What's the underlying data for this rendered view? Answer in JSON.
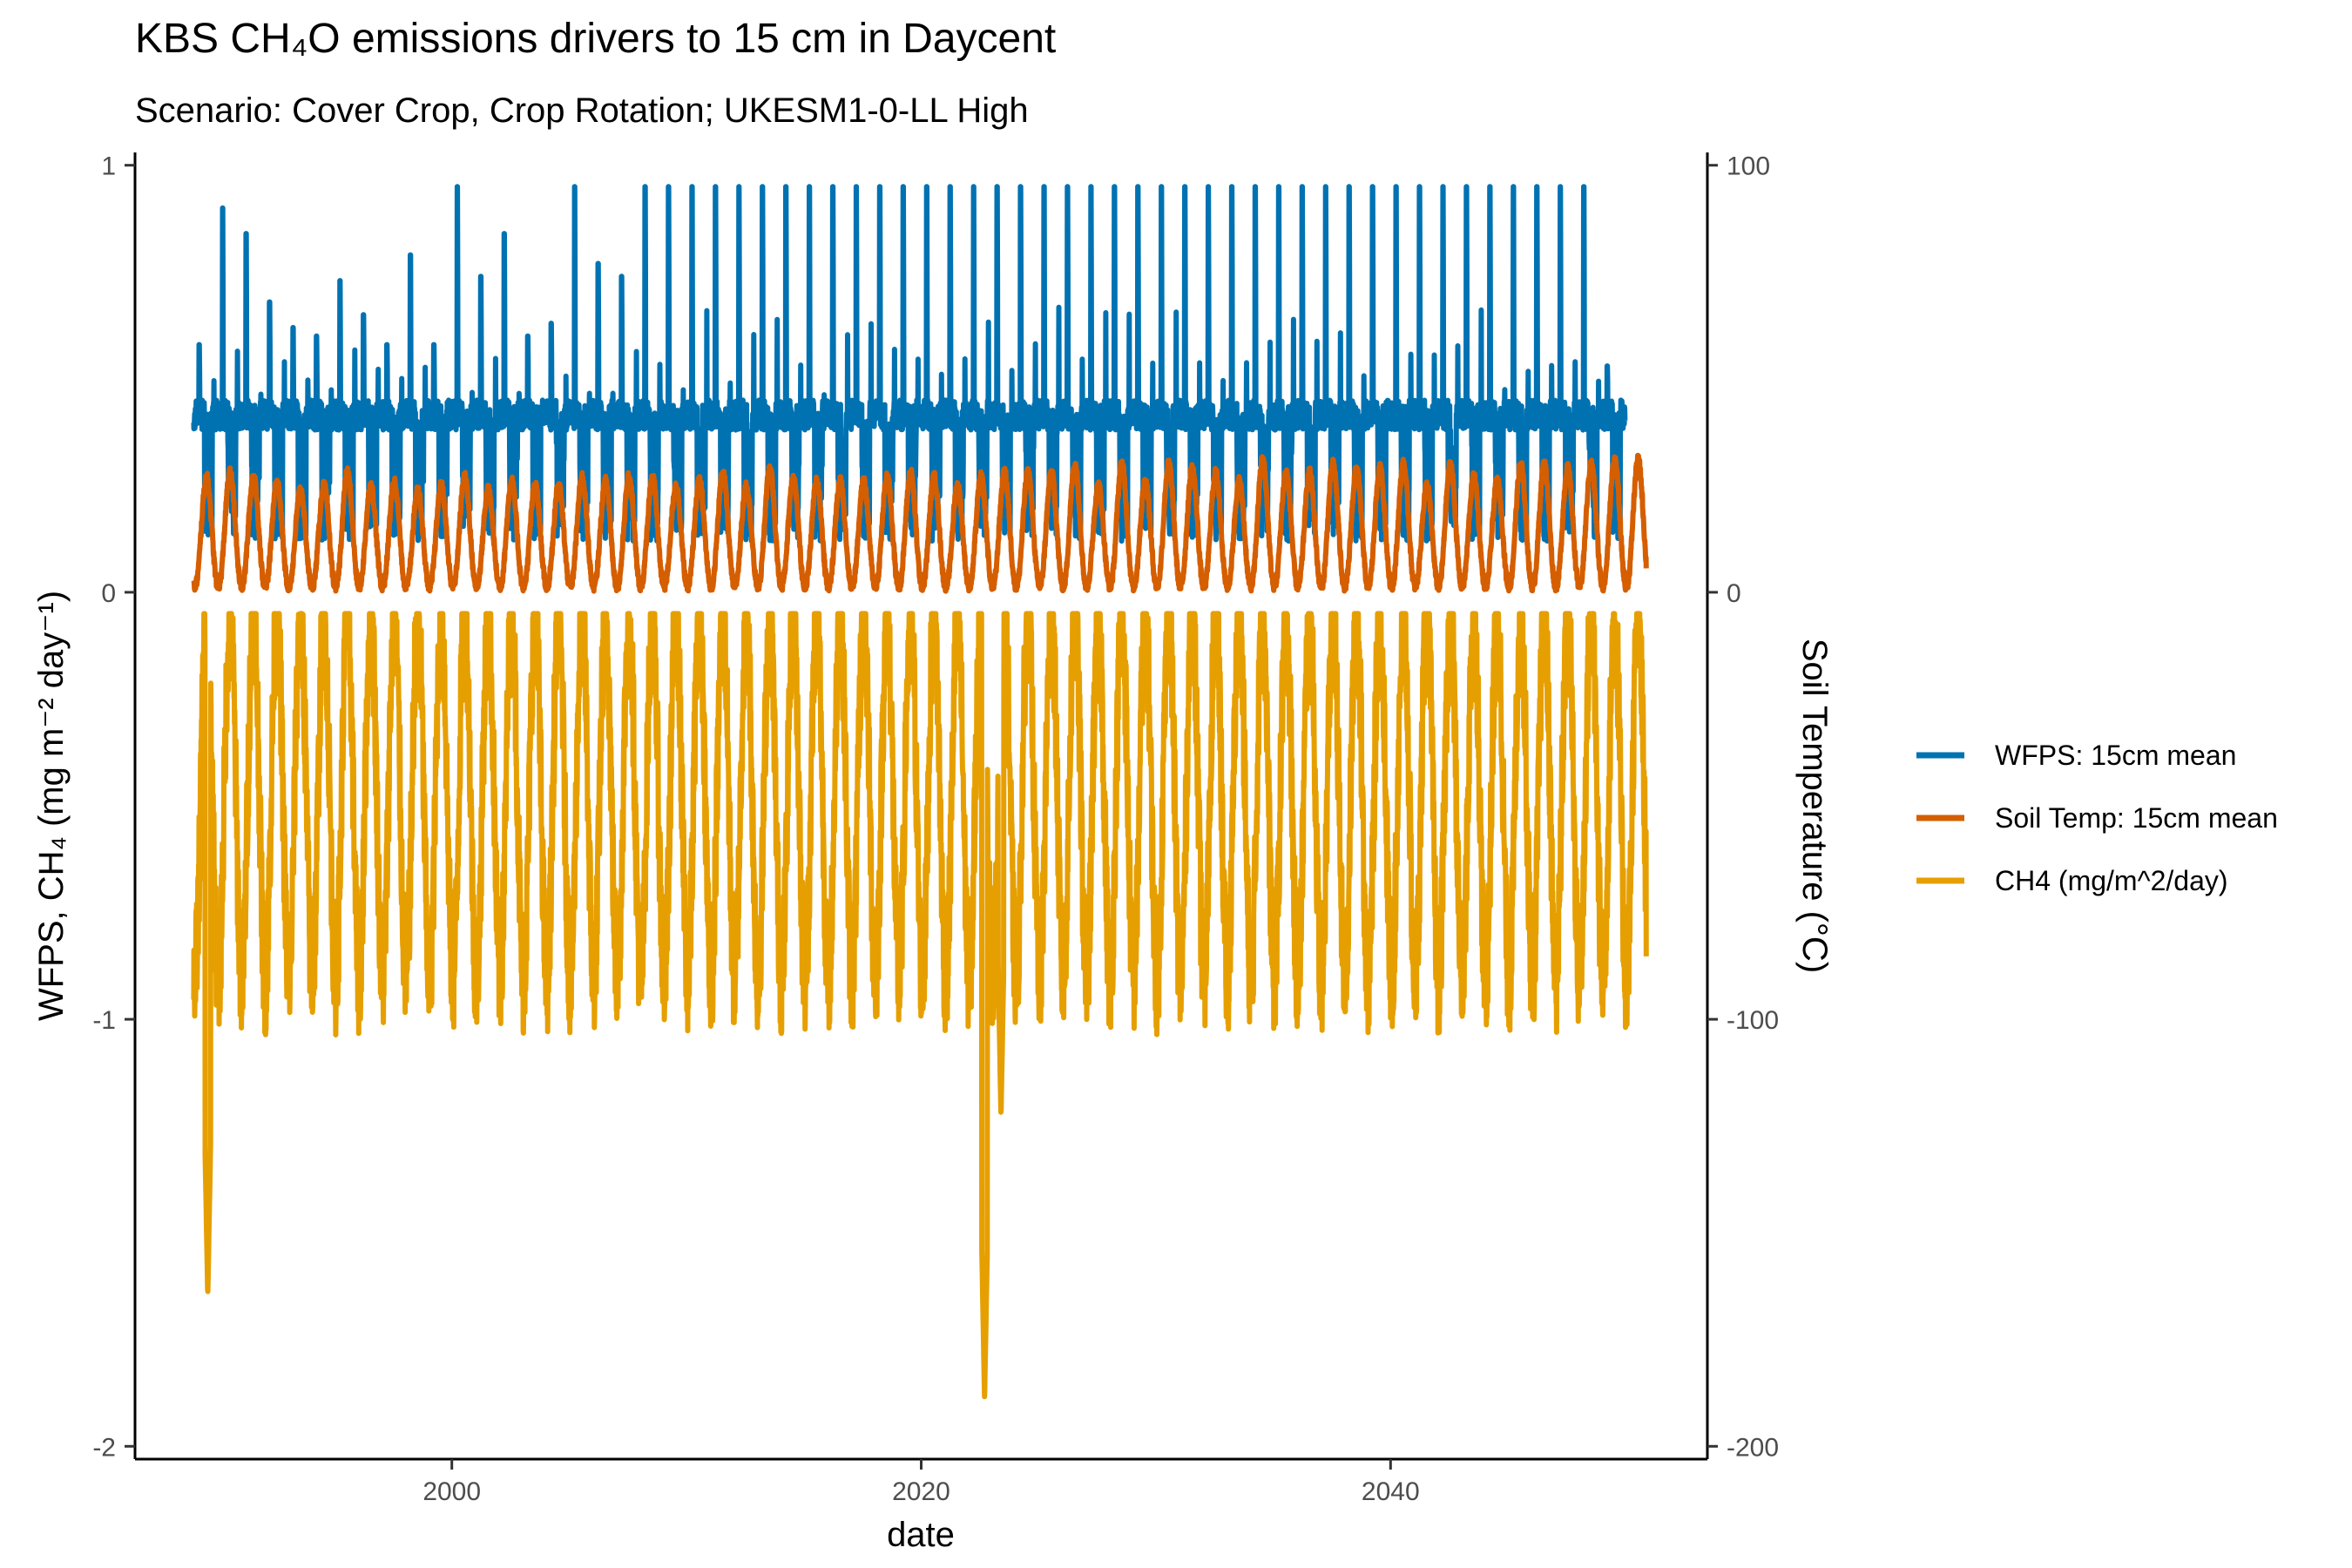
{
  "chart_data": {
    "type": "line",
    "title": "KBS CH₄O emissions drivers to 15 cm in Daycent",
    "subtitle": "Scenario: Cover Crop, Crop Rotation; UKESM1-0-LL High",
    "xlabel": "date",
    "ylabel": "WFPS, CH₄  (mg m⁻² day⁻¹)",
    "y2label": "Soil Temperature (°C)",
    "xlim": [
      1986.5,
      2053.5
    ],
    "ylim": [
      -2.03,
      1.03
    ],
    "y2lim": [
      -203,
      103
    ],
    "x_ticks": [
      2000,
      2020,
      2040
    ],
    "x_tick_labels": [
      "2000",
      "2020",
      "2040"
    ],
    "y_ticks": [
      -2,
      -1,
      0,
      1
    ],
    "y_tick_labels": [
      "-2",
      "-1",
      "0",
      "1"
    ],
    "y2_ticks": [
      -200,
      -100,
      0,
      100
    ],
    "y2_tick_labels": [
      "-200",
      "-100",
      "0",
      "100"
    ],
    "x_start": 1989,
    "x_end": 2050.9,
    "legend_position": "right",
    "grid": false,
    "series": [
      {
        "name": "WFPS: 15cm mean",
        "color": "#0072B2",
        "axis": "left",
        "x_end": 2050,
        "base_low": 0.12,
        "base_high": 0.44,
        "annual_peaks": [
          0.58,
          0.9,
          0.84,
          0.68,
          0.62,
          0.6,
          0.73,
          0.65,
          0.58,
          0.79,
          0.58,
          0.95,
          0.74,
          0.84,
          0.6,
          0.63,
          0.95,
          0.77,
          0.74,
          0.95,
          0.95,
          0.95,
          0.95,
          0.95,
          0.95,
          0.95,
          0.95,
          0.95,
          0.95,
          0.95,
          0.95,
          0.95,
          0.95,
          0.95,
          0.95,
          0.95,
          0.95,
          0.95,
          0.95,
          0.95,
          0.95,
          0.95,
          0.95,
          0.95,
          0.95,
          0.95,
          0.95,
          0.95,
          0.95,
          0.95,
          0.95,
          0.95,
          0.95,
          0.95,
          0.95,
          0.95,
          0.95,
          0.95,
          0.95,
          0.95,
          0.53
        ]
      },
      {
        "name": "Soil Temp: 15cm mean",
        "color": "#D55E00",
        "axis": "right",
        "winter_min": 1.5,
        "summer_max": 28,
        "annual_max": [
          27,
          28,
          27,
          26,
          24,
          25,
          28,
          25,
          26,
          24,
          25,
          27,
          24,
          26,
          25,
          25,
          27,
          26,
          27,
          27,
          25,
          26,
          28,
          25,
          29,
          27,
          26,
          26,
          26,
          27,
          28,
          27,
          25,
          27,
          28,
          28,
          28,
          30,
          25,
          30,
          26,
          30,
          29,
          28,
          26,
          31,
          28,
          28,
          30,
          29,
          29,
          30,
          25,
          30,
          27,
          26,
          30,
          30,
          29,
          30,
          31,
          31
        ]
      },
      {
        "name": "CH4 (mg/m^2/day)",
        "color": "#E69F00",
        "axis": "left",
        "summer_max": -0.05,
        "winter_min": -0.9,
        "dips": [
          {
            "x": 1989.6,
            "y": -1.65
          },
          {
            "x": 2022.7,
            "y": -1.89
          },
          {
            "x": 2023.4,
            "y": -1.23
          }
        ]
      }
    ]
  }
}
